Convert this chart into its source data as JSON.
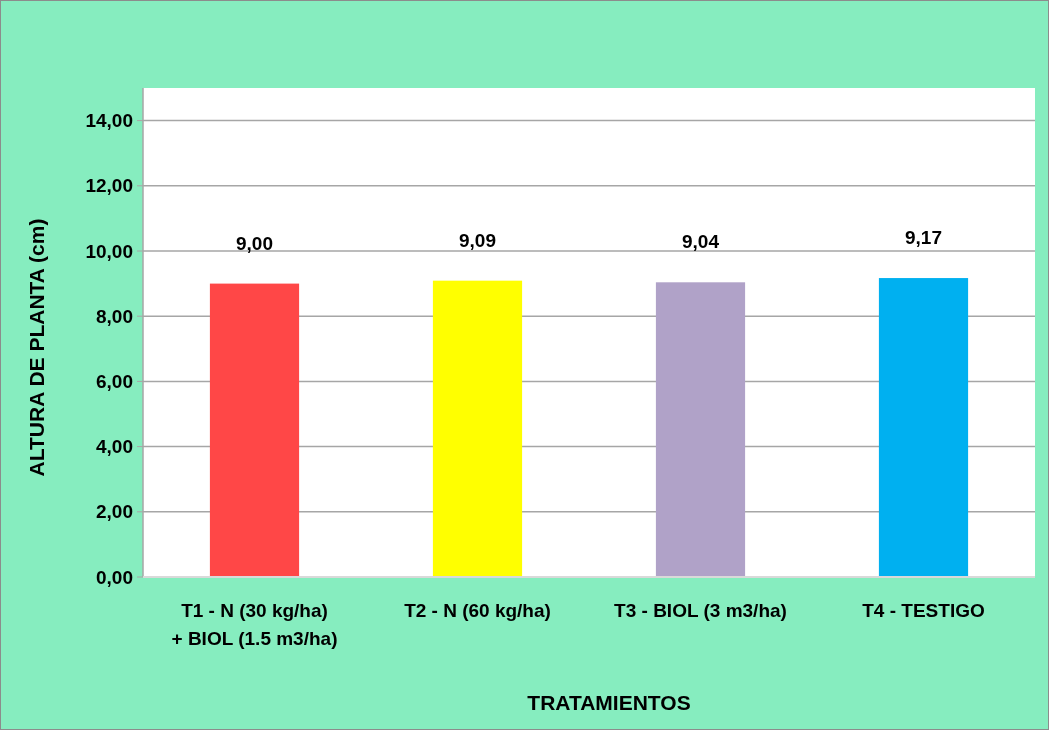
{
  "chart_data": {
    "type": "bar",
    "categories": [
      "T1 - N  (30 kg/ha)\n+ BIOL (1.5 m3/ha)",
      "T2 - N (60 kg/ha)",
      "T3 - BIOL (3 m3/ha)",
      "T4 - TESTIGO"
    ],
    "values": [
      9.0,
      9.09,
      9.04,
      9.17
    ],
    "colors": [
      "#ff4747",
      "#ffff00",
      "#b0a2c8",
      "#00b0f0"
    ],
    "value_labels": [
      "9,00",
      "9,09",
      "9,04",
      "9,17"
    ],
    "xlabel": "TRATAMIENTOS",
    "ylabel": "ALTURA DE PLANTA (cm)",
    "ylim": [
      0,
      15
    ],
    "yticks": [
      {
        "value": 0,
        "label": "0,00"
      },
      {
        "value": 2,
        "label": "2,00"
      },
      {
        "value": 4,
        "label": "4,00"
      },
      {
        "value": 6,
        "label": "6,00"
      },
      {
        "value": 8,
        "label": "8,00"
      },
      {
        "value": 10,
        "label": "10,00"
      },
      {
        "value": 12,
        "label": "12,00"
      },
      {
        "value": 14,
        "label": "14,00"
      }
    ],
    "grid": "y"
  }
}
